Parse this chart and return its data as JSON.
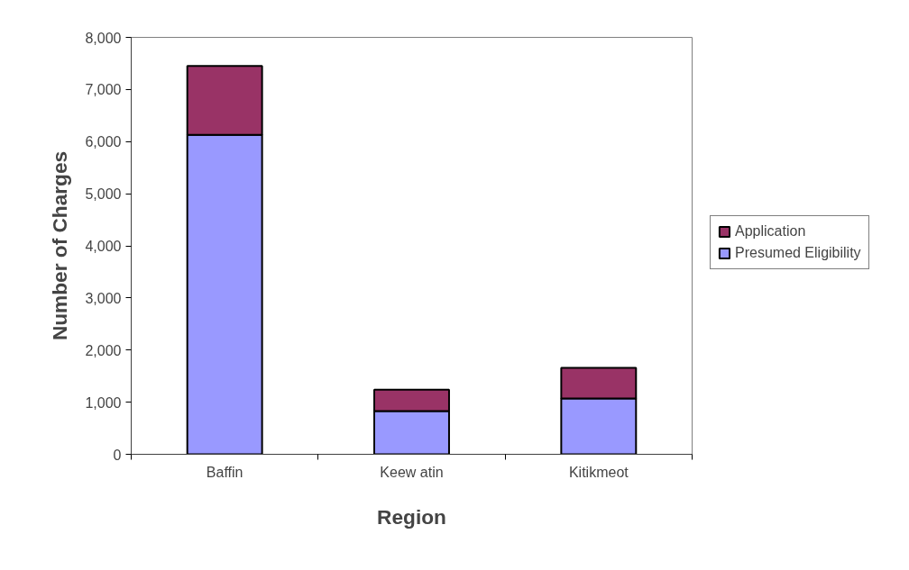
{
  "chart_data": {
    "type": "bar",
    "stacked": true,
    "xlabel": "Region",
    "ylabel": "Number of Charges",
    "categories": [
      "Baffin",
      "Keew atin",
      "Kitikmeot"
    ],
    "series": [
      {
        "name": "Presumed Eligibility",
        "color": "#9999ff",
        "values": [
          6130,
          830,
          1070
        ]
      },
      {
        "name": "Application",
        "color": "#993366",
        "values": [
          1320,
          410,
          590
        ]
      }
    ],
    "ylim": [
      0,
      8000
    ],
    "yticks": [
      {
        "value": 0,
        "label": "0"
      },
      {
        "value": 1000,
        "label": "1,000"
      },
      {
        "value": 2000,
        "label": "2,000"
      },
      {
        "value": 3000,
        "label": "3,000"
      },
      {
        "value": 4000,
        "label": "4,000"
      },
      {
        "value": 5000,
        "label": "5,000"
      },
      {
        "value": 6000,
        "label": "6,000"
      },
      {
        "value": 7000,
        "label": "7,000"
      },
      {
        "value": 8000,
        "label": "8,000"
      }
    ],
    "grid": false,
    "legend": "right"
  }
}
